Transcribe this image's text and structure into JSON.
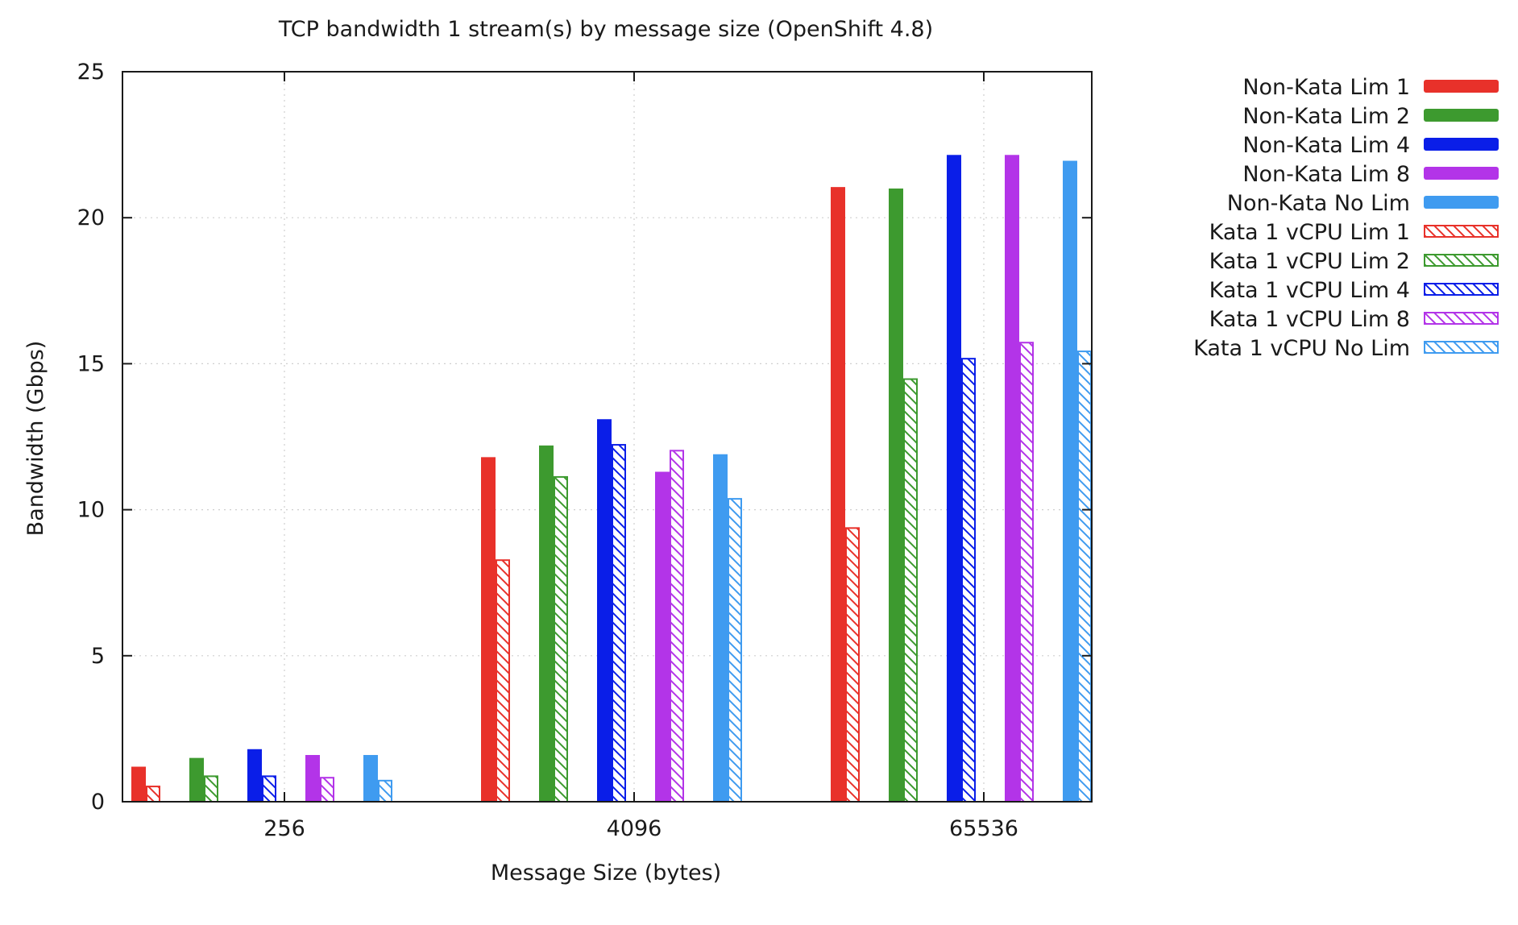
{
  "chart_data": {
    "type": "bar",
    "title": "TCP bandwidth  1 stream(s) by message size (OpenShift 4.8)",
    "xlabel": "Message Size (bytes)",
    "ylabel": "Bandwidth (Gbps)",
    "categories": [
      "256",
      "4096",
      "65536"
    ],
    "ylim": [
      0,
      25
    ],
    "yticks": [
      0,
      5,
      10,
      15,
      20,
      25
    ],
    "grid": true,
    "legend_position": "right",
    "series": [
      {
        "name": "Non-Kata Lim 1",
        "color": "#e8312a",
        "pattern": "solid",
        "values": [
          1.2,
          11.8,
          21.05
        ]
      },
      {
        "name": "Kata 1 vCPU Lim 1",
        "color": "#e8312a",
        "pattern": "hatch",
        "values": [
          0.55,
          8.3,
          9.4
        ]
      },
      {
        "name": "Non-Kata Lim 2",
        "color": "#3d9a2f",
        "pattern": "solid",
        "values": [
          1.5,
          12.2,
          21.0
        ]
      },
      {
        "name": "Kata 1 vCPU Lim 2",
        "color": "#3d9a2f",
        "pattern": "hatch",
        "values": [
          0.9,
          11.15,
          14.5
        ]
      },
      {
        "name": "Non-Kata Lim 4",
        "color": "#0a1ee8",
        "pattern": "solid",
        "values": [
          1.8,
          13.1,
          22.15
        ]
      },
      {
        "name": "Kata 1 vCPU Lim 4",
        "color": "#0a1ee8",
        "pattern": "hatch",
        "values": [
          0.9,
          12.25,
          15.2
        ]
      },
      {
        "name": "Non-Kata Lim 8",
        "color": "#b334e8",
        "pattern": "solid",
        "values": [
          1.6,
          11.3,
          22.15
        ]
      },
      {
        "name": "Kata 1 vCPU Lim 8",
        "color": "#b334e8",
        "pattern": "hatch",
        "values": [
          0.85,
          12.05,
          15.75
        ]
      },
      {
        "name": "Non-Kata No Lim",
        "color": "#3f9bf0",
        "pattern": "solid",
        "values": [
          1.6,
          11.9,
          21.95
        ]
      },
      {
        "name": "Kata 1 vCPU No Lim",
        "color": "#3f9bf0",
        "pattern": "hatch",
        "values": [
          0.75,
          10.4,
          15.45
        ]
      }
    ],
    "legend_order": [
      "Non-Kata Lim 1",
      "Non-Kata Lim 2",
      "Non-Kata Lim 4",
      "Non-Kata Lim 8",
      "Non-Kata No Lim",
      "Kata 1 vCPU Lim 1",
      "Kata 1 vCPU Lim 2",
      "Kata 1 vCPU Lim 4",
      "Kata 1 vCPU Lim 8",
      "Kata 1 vCPU No Lim"
    ]
  }
}
